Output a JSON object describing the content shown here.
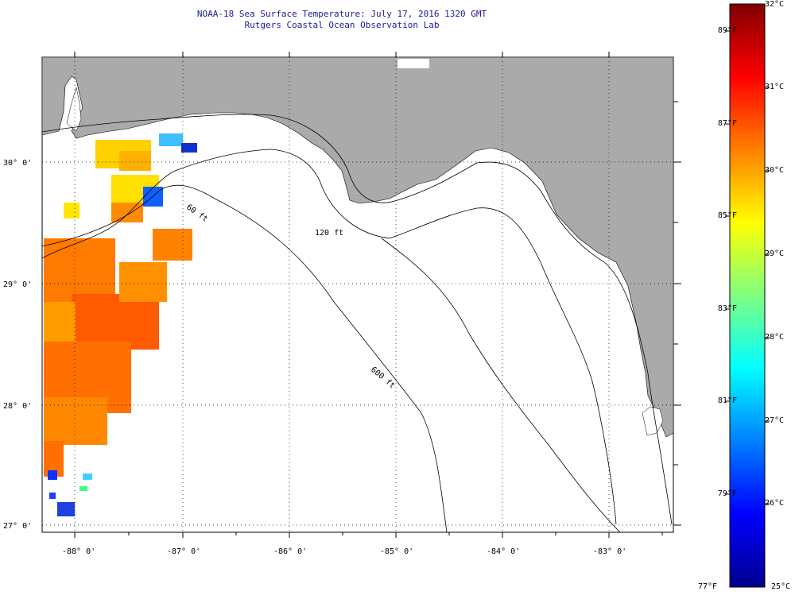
{
  "header": {
    "title": "NOAA-18 Sea Surface Temperature:  July 17, 2016 1320 GMT",
    "subtitle": "Rutgers Coastal Ocean Observation Lab"
  },
  "map": {
    "longitude_labels": [
      "-88° 0'",
      "-87° 0'",
      "-86° 0'",
      "-85° 0'",
      "-84° 0'",
      "-83° 0'"
    ],
    "latitude_labels": [
      "30° 0'",
      "29° 0'",
      "28° 0'",
      "27° 0'"
    ],
    "contour_labels": [
      "60 ft",
      "120 ft",
      "600 ft"
    ],
    "colors": {
      "land": "#aaaaaa",
      "ocean": "#ffffff",
      "grid": "#000000",
      "title": "#1a1aa0"
    }
  },
  "colorbar": {
    "fahrenheit_labels": [
      "89°F",
      "87°F",
      "85°F",
      "83°F",
      "81°F",
      "79°F",
      "77°F"
    ],
    "celsius_labels": [
      "32°C",
      "31°C",
      "30°C",
      "29°C",
      "28°C",
      "27°C",
      "26°C",
      "25°C"
    ],
    "range_c": [
      25,
      32
    ],
    "range_f": [
      77,
      89.6
    ],
    "colormap": "jet"
  }
}
